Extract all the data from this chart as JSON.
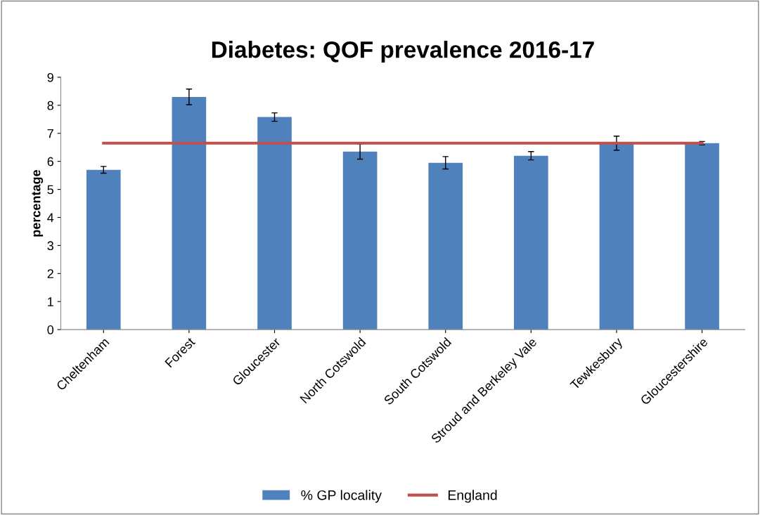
{
  "chart_data": {
    "type": "bar",
    "title": "Diabetes: QOF prevalence 2016-17",
    "ylabel": "percentage",
    "categories": [
      "Cheltenham",
      "Forest",
      "Gloucester",
      "North Cotswold",
      "South Cotswold",
      "Stroud and Berkeley Vale",
      "Tewkesbury",
      "Gloucestershire"
    ],
    "series": [
      {
        "name": "% GP locality",
        "color": "#4f81bd",
        "values": [
          5.7,
          8.3,
          7.58,
          6.35,
          5.95,
          6.2,
          6.65,
          6.65
        ],
        "errors": [
          0.12,
          0.28,
          0.15,
          0.27,
          0.22,
          0.15,
          0.25,
          0.06
        ]
      },
      {
        "name": "England",
        "type": "line",
        "color": "#c0504d",
        "values": [
          6.65,
          6.65,
          6.65,
          6.65,
          6.65,
          6.65,
          6.65,
          6.65
        ]
      }
    ],
    "ylim": [
      0,
      9
    ],
    "yticks": [
      0,
      1,
      2,
      3,
      4,
      5,
      6,
      7,
      8,
      9
    ],
    "grid": false,
    "legend": "bottom"
  }
}
